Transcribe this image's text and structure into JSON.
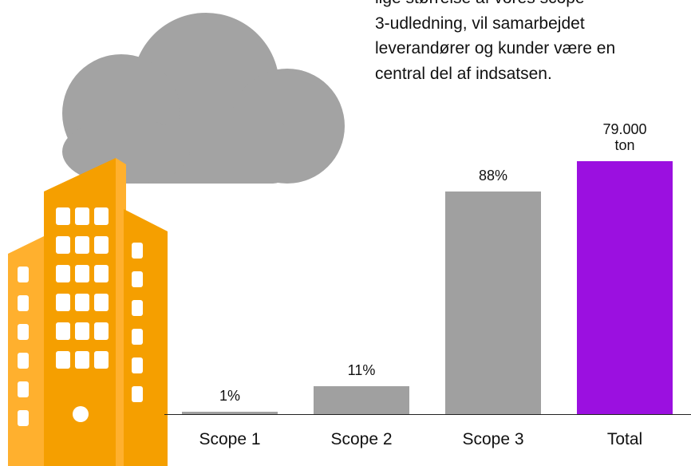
{
  "text": [
    "lige størrelse af vores scope",
    "3-udledning, vil samarbejdet",
    "leverandører og kunder være en",
    "central del af indsatsen."
  ],
  "chart_data": {
    "type": "bar",
    "categories": [
      "Scope 1",
      "Scope 2",
      "Scope 3",
      "Total"
    ],
    "series": [
      {
        "color": "#a0a0a0",
        "values": [
          1,
          11,
          88,
          null
        ],
        "value_labels": [
          "1%",
          "11%",
          "88%",
          null
        ]
      },
      {
        "color": "#9b10e0",
        "axis": "y2",
        "values": [
          null,
          null,
          null,
          79000
        ],
        "value_labels": [
          null,
          null,
          null,
          "79.000 ton"
        ]
      }
    ],
    "ylim": [
      0,
      100
    ],
    "y2lim": [
      0,
      79000
    ]
  }
}
